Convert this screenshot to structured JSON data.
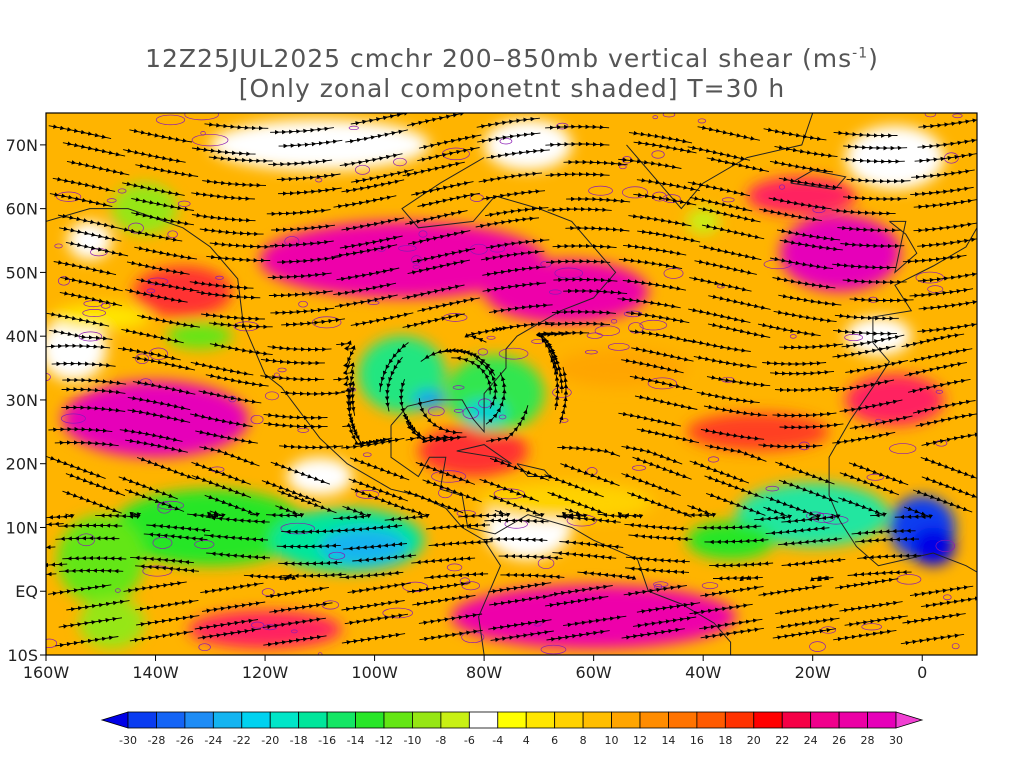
{
  "title": {
    "line1_prefix": "12Z25JUL2025 cmchr 200–850mb vertical shear (ms",
    "line1_sup": "-1",
    "line1_suffix": ")",
    "line2": "[Only zonal componetnt shaded] T=30 h"
  },
  "lat_labels": [
    "70N",
    "60N",
    "50N",
    "40N",
    "30N",
    "20N",
    "10N",
    "EQ",
    "10S"
  ],
  "lon_labels": [
    "160W",
    "140W",
    "120W",
    "100W",
    "80W",
    "60W",
    "40W",
    "20W",
    "0"
  ],
  "colorbar": {
    "labels": [
      "-30",
      "-28",
      "-26",
      "-24",
      "-22",
      "-20",
      "-18",
      "-16",
      "-14",
      "-12",
      "-10",
      "-8",
      "-6",
      "-4",
      "4",
      "6",
      "8",
      "10",
      "12",
      "14",
      "16",
      "18",
      "20",
      "22",
      "24",
      "26",
      "28",
      "30"
    ],
    "colors": [
      "#0000e6",
      "#0a3cf0",
      "#1464f5",
      "#1e8cf5",
      "#14b4f0",
      "#00d2f0",
      "#00e6c8",
      "#00e69b",
      "#14e664",
      "#28e628",
      "#64e614",
      "#96e614",
      "#c8f014",
      "#ffffff",
      "#ffff00",
      "#ffe600",
      "#ffd200",
      "#ffbe00",
      "#ffa500",
      "#ff8c00",
      "#ff7300",
      "#ff5a00",
      "#ff3200",
      "#ff0000",
      "#f50046",
      "#f0008c",
      "#eb00a5",
      "#e600b9",
      "#f040d2"
    ]
  },
  "map_legend": {
    "shading": "zonal component of 200-850mb vertical shear (ms-1)",
    "streamlines": "black",
    "contours": "purple"
  }
}
